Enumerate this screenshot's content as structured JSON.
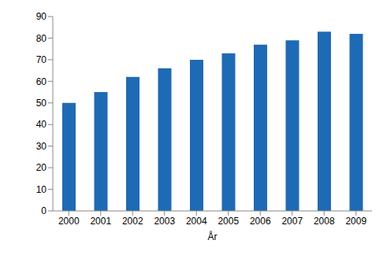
{
  "chart_data": {
    "type": "bar",
    "x_label": "År",
    "categories": [
      "2000",
      "2001",
      "2002",
      "2003",
      "2004",
      "2005",
      "2006",
      "2007",
      "2008",
      "2009"
    ],
    "values": [
      50,
      55,
      62,
      66,
      70,
      73,
      77,
      79,
      83,
      82
    ],
    "color": "#1f6ab4",
    "ylim": [
      0,
      90
    ],
    "yticks": [
      0,
      10,
      20,
      30,
      40,
      50,
      60,
      70,
      80,
      90
    ],
    "grid": false
  }
}
